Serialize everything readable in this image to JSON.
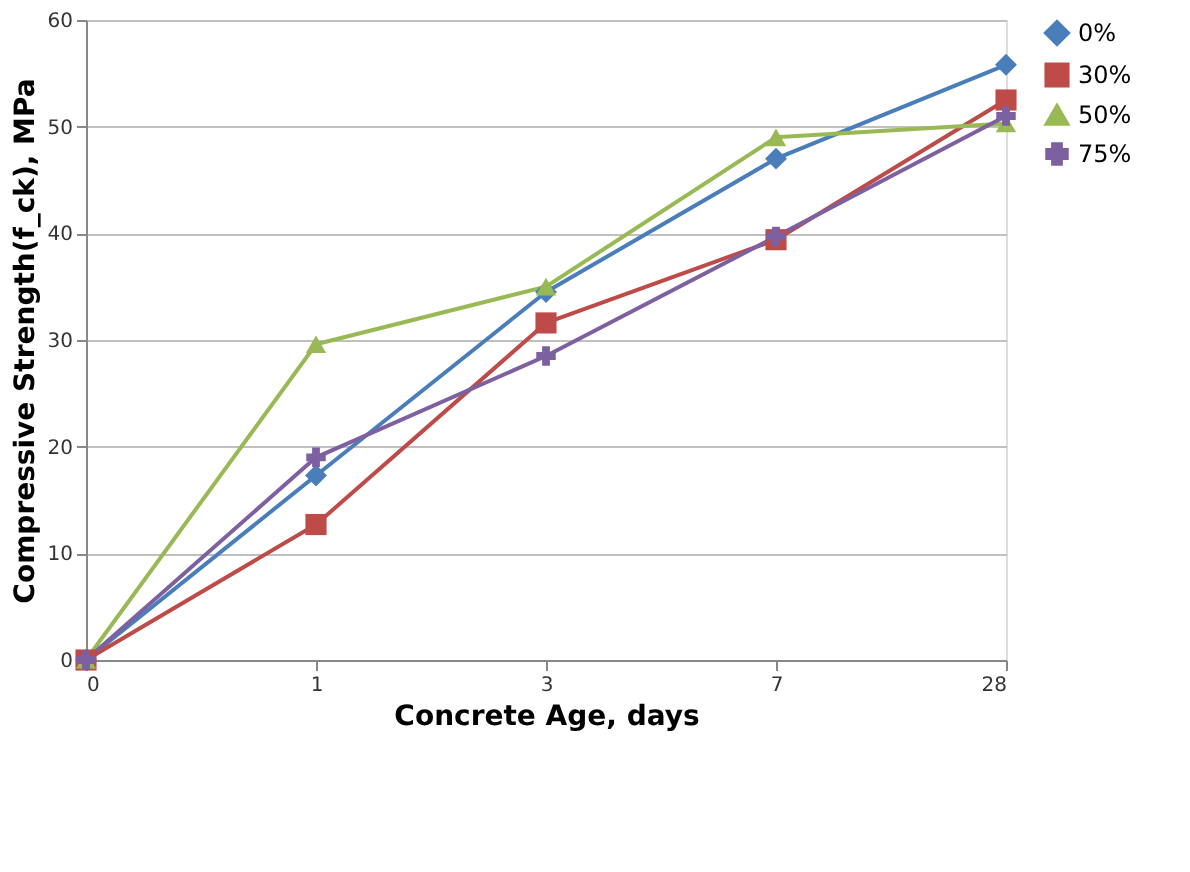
{
  "chart_data": {
    "type": "line",
    "xlabel": "Concrete Age, days",
    "ylabel": "Compressive Strength(f_ck), MPa",
    "categories": [
      "0",
      "1",
      "3",
      "7",
      "28"
    ],
    "series": [
      {
        "name": "0%",
        "color": "#4a7ebb",
        "marker": "diamond",
        "values": [
          0,
          17.3,
          34.5,
          47,
          55.8
        ]
      },
      {
        "name": "30%",
        "color": "#be4b48",
        "marker": "square",
        "values": [
          0,
          12.7,
          31.6,
          39.4,
          52.5
        ]
      },
      {
        "name": "50%",
        "color": "#98b954",
        "marker": "triangle",
        "values": [
          0,
          29.6,
          35,
          49,
          50.3
        ]
      },
      {
        "name": "75%",
        "color": "#7d60a0",
        "marker": "cross",
        "values": [
          0,
          19,
          28.5,
          39.7,
          51
        ]
      }
    ],
    "ylim": [
      0,
      60
    ],
    "yticks": [
      0,
      10,
      20,
      30,
      40,
      50,
      60
    ],
    "grid": "y",
    "legend": "right",
    "line_style": "solid"
  }
}
